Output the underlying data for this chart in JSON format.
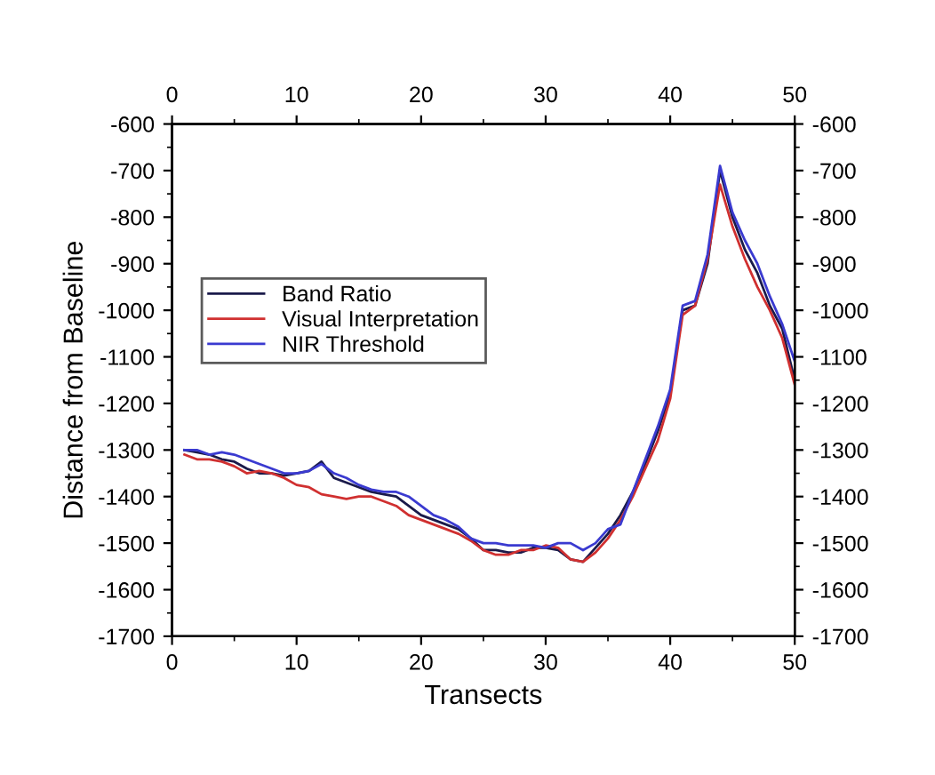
{
  "chart_data": {
    "type": "line",
    "xlabel": "Transects",
    "ylabel": "Distance from Baseline",
    "x": [
      1,
      2,
      3,
      4,
      5,
      6,
      7,
      8,
      9,
      10,
      11,
      12,
      13,
      14,
      15,
      16,
      17,
      18,
      19,
      20,
      21,
      22,
      23,
      24,
      25,
      26,
      27,
      28,
      29,
      30,
      31,
      32,
      33,
      34,
      35,
      36,
      37,
      38,
      39,
      40,
      41,
      42,
      43,
      44,
      45,
      46,
      47,
      48,
      49,
      50
    ],
    "series": [
      {
        "name": "Band Ratio",
        "color": "#1a1a4a",
        "values": [
          -1300,
          -1305,
          -1310,
          -1320,
          -1325,
          -1340,
          -1350,
          -1350,
          -1355,
          -1350,
          -1345,
          -1325,
          -1360,
          -1370,
          -1380,
          -1390,
          -1395,
          -1400,
          -1420,
          -1440,
          -1450,
          -1460,
          -1470,
          -1490,
          -1515,
          -1515,
          -1520,
          -1520,
          -1510,
          -1510,
          -1515,
          -1535,
          -1540,
          -1510,
          -1480,
          -1440,
          -1390,
          -1330,
          -1260,
          -1180,
          -1000,
          -990,
          -900,
          -700,
          -800,
          -870,
          -920,
          -990,
          -1040,
          -1150
        ]
      },
      {
        "name": "Visual Interpretation",
        "color": "#d03030",
        "values": [
          -1310,
          -1320,
          -1320,
          -1325,
          -1335,
          -1350,
          -1345,
          -1350,
          -1360,
          -1375,
          -1380,
          -1395,
          -1400,
          -1405,
          -1400,
          -1400,
          -1410,
          -1420,
          -1440,
          -1450,
          -1460,
          -1470,
          -1480,
          -1495,
          -1515,
          -1525,
          -1525,
          -1515,
          -1515,
          -1505,
          -1510,
          -1535,
          -1540,
          -1520,
          -1490,
          -1450,
          -1400,
          -1340,
          -1280,
          -1190,
          -1010,
          -990,
          -890,
          -730,
          -820,
          -890,
          -950,
          -1000,
          -1060,
          -1160
        ]
      },
      {
        "name": "NIR Threshold",
        "color": "#3a3ad0",
        "values": [
          -1300,
          -1300,
          -1310,
          -1305,
          -1310,
          -1320,
          -1330,
          -1340,
          -1350,
          -1350,
          -1345,
          -1330,
          -1350,
          -1360,
          -1375,
          -1385,
          -1390,
          -1390,
          -1400,
          -1420,
          -1440,
          -1450,
          -1465,
          -1490,
          -1500,
          -1500,
          -1505,
          -1505,
          -1505,
          -1510,
          -1500,
          -1500,
          -1515,
          -1500,
          -1470,
          -1460,
          -1390,
          -1320,
          -1250,
          -1170,
          -990,
          -980,
          -880,
          -690,
          -790,
          -850,
          -900,
          -970,
          -1030,
          -1110
        ]
      }
    ],
    "xlim": [
      0,
      50
    ],
    "xticks": [
      0,
      10,
      20,
      30,
      40,
      50
    ],
    "x2lim": [
      0,
      50
    ],
    "x2ticks": [
      0,
      10,
      20,
      30,
      40,
      50
    ],
    "ylim": [
      -1700,
      -600
    ],
    "yticks": [
      -1700,
      -1600,
      -1500,
      -1400,
      -1300,
      -1200,
      -1100,
      -1000,
      -900,
      -800,
      -700,
      -600
    ],
    "y2lim": [
      -1700,
      -600
    ],
    "y2ticks": [
      -1700,
      -1600,
      -1500,
      -1400,
      -1300,
      -1200,
      -1100,
      -1000,
      -900,
      -800,
      -700,
      -600
    ],
    "legend": "top left",
    "grid": false,
    "marker": "none",
    "line_style": "solid"
  }
}
